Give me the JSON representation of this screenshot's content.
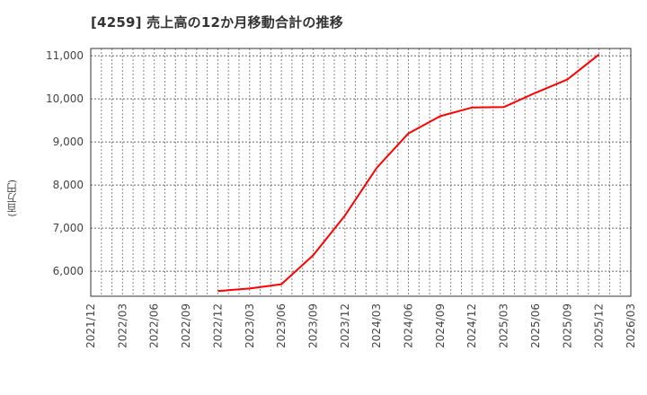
{
  "title": "[4259]  売上高の12か月移動合計の推移",
  "ylabel": "(百万円)",
  "colors": {
    "line": "#ff0000",
    "grid": "#888888",
    "axis": "#333333",
    "text": "#444444"
  },
  "chart_data": {
    "type": "line",
    "title": "[4259] 売上高の12か月移動合計の推移",
    "xlabel": "",
    "ylabel": "(百万円)",
    "x_ticks": [
      "2021/12",
      "2022/03",
      "2022/06",
      "2022/09",
      "2022/12",
      "2023/03",
      "2023/06",
      "2023/09",
      "2023/12",
      "2024/03",
      "2024/06",
      "2024/09",
      "2024/12",
      "2025/03",
      "2025/06",
      "2025/09",
      "2025/12",
      "2026/03"
    ],
    "y_ticks": [
      6000,
      7000,
      8000,
      9000,
      10000,
      11000
    ],
    "y_tick_labels": [
      "6,000",
      "7,000",
      "8,000",
      "9,000",
      "10,000",
      "11,000"
    ],
    "ylim": [
      5420,
      11170
    ],
    "grid": true,
    "legend": null,
    "series": [
      {
        "name": "売上高(12か月移動合計)",
        "x": [
          "2022/12",
          "2023/03",
          "2023/06",
          "2023/09",
          "2023/12",
          "2024/03",
          "2024/06",
          "2024/09",
          "2024/12",
          "2025/03",
          "2025/06",
          "2025/09",
          "2025/12"
        ],
        "values": [
          5540,
          5600,
          5700,
          6370,
          7290,
          8400,
          9200,
          9600,
          9800,
          9810,
          10140,
          10450,
          11030
        ]
      }
    ]
  }
}
